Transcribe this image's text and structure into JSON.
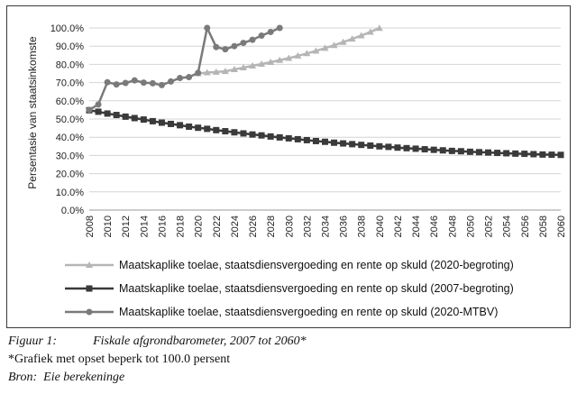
{
  "chart_data": {
    "type": "line",
    "title": "",
    "xlabel": "",
    "ylabel": "Persentasie van staatsinkomste",
    "ylim": [
      0,
      100
    ],
    "yticks": [
      "0.0%",
      "10.0%",
      "20.0%",
      "30.0%",
      "40.0%",
      "50.0%",
      "60.0%",
      "70.0%",
      "80.0%",
      "90.0%",
      "100.0%"
    ],
    "xlim": [
      2008,
      2060
    ],
    "xticks": [
      "2008",
      "2010",
      "2012",
      "2014",
      "2016",
      "2018",
      "2020",
      "2022",
      "2024",
      "2026",
      "2028",
      "2030",
      "2032",
      "2034",
      "2036",
      "2038",
      "2040",
      "2042",
      "2044",
      "2046",
      "2048",
      "2050",
      "2052",
      "2054",
      "2056",
      "2058",
      "2060"
    ],
    "grid": true,
    "legend_position": "bottom",
    "series": [
      {
        "name": "Maatskaplike toelae, staatsdiensvergoeding en rente op skuld (2020-begroting)",
        "color": "#b5b5b5",
        "marker": "triangle",
        "x": [
          2020,
          2021,
          2022,
          2023,
          2024,
          2025,
          2026,
          2027,
          2028,
          2029,
          2030,
          2031,
          2032,
          2033,
          2034,
          2035,
          2036,
          2037,
          2038,
          2039,
          2040
        ],
        "y": [
          75.0,
          75.5,
          75.8,
          76.2,
          77.2,
          78.2,
          79.2,
          80.2,
          81.2,
          82.3,
          83.4,
          84.7,
          86.0,
          87.4,
          88.9,
          90.5,
          92.2,
          94.0,
          95.8,
          97.8,
          99.9
        ]
      },
      {
        "name": "Maatskaplike toelae, staatsdiensvergoeding en rente op skuld (2007-begroting)",
        "color": "#3a3a3a",
        "marker": "square",
        "x": [
          2008,
          2009,
          2010,
          2011,
          2012,
          2013,
          2014,
          2015,
          2016,
          2017,
          2018,
          2019,
          2020,
          2021,
          2022,
          2023,
          2024,
          2025,
          2026,
          2027,
          2028,
          2029,
          2030,
          2031,
          2032,
          2033,
          2034,
          2035,
          2036,
          2037,
          2038,
          2039,
          2040,
          2041,
          2042,
          2043,
          2044,
          2045,
          2046,
          2047,
          2048,
          2049,
          2050,
          2051,
          2052,
          2053,
          2054,
          2055,
          2056,
          2057,
          2058,
          2059,
          2060
        ],
        "y": [
          54.8,
          54.0,
          53.0,
          52.2,
          51.3,
          50.5,
          49.7,
          48.8,
          48.0,
          47.3,
          46.6,
          45.8,
          45.2,
          44.6,
          43.9,
          43.3,
          42.7,
          42.1,
          41.5,
          41.0,
          40.4,
          39.9,
          39.4,
          38.9,
          38.4,
          37.9,
          37.5,
          37.0,
          36.6,
          36.2,
          35.8,
          35.4,
          35.0,
          34.7,
          34.3,
          34.0,
          33.7,
          33.4,
          33.1,
          32.8,
          32.5,
          32.3,
          32.0,
          31.8,
          31.6,
          31.4,
          31.2,
          31.0,
          30.9,
          30.7,
          30.5,
          30.4,
          30.3
        ]
      },
      {
        "name": "Maatskaplike toelae, staatsdiensvergoeding en rente op skuld (2020-MTBV)",
        "color": "#7a7a7a",
        "marker": "circle",
        "x": [
          2008,
          2009,
          2010,
          2011,
          2012,
          2013,
          2014,
          2015,
          2016,
          2017,
          2018,
          2019,
          2020,
          2021,
          2022,
          2023,
          2024,
          2025,
          2026,
          2027,
          2028,
          2029
        ],
        "y": [
          55.0,
          58.0,
          70.2,
          69.0,
          69.8,
          71.2,
          70.0,
          69.6,
          68.6,
          70.6,
          72.5,
          73.0,
          75.3,
          100.0,
          89.5,
          88.3,
          90.0,
          91.8,
          93.5,
          95.8,
          97.8,
          100.0
        ]
      }
    ]
  },
  "caption": {
    "figure_label": "Figuur 1:",
    "figure_title": "Fiskale afgrondbarometer, 2007 tot 2060*",
    "note": "*Grafiek met opset beperk tot 100.0 persent",
    "source_label": "Bron:",
    "source_text": "Eie berekeninge"
  }
}
